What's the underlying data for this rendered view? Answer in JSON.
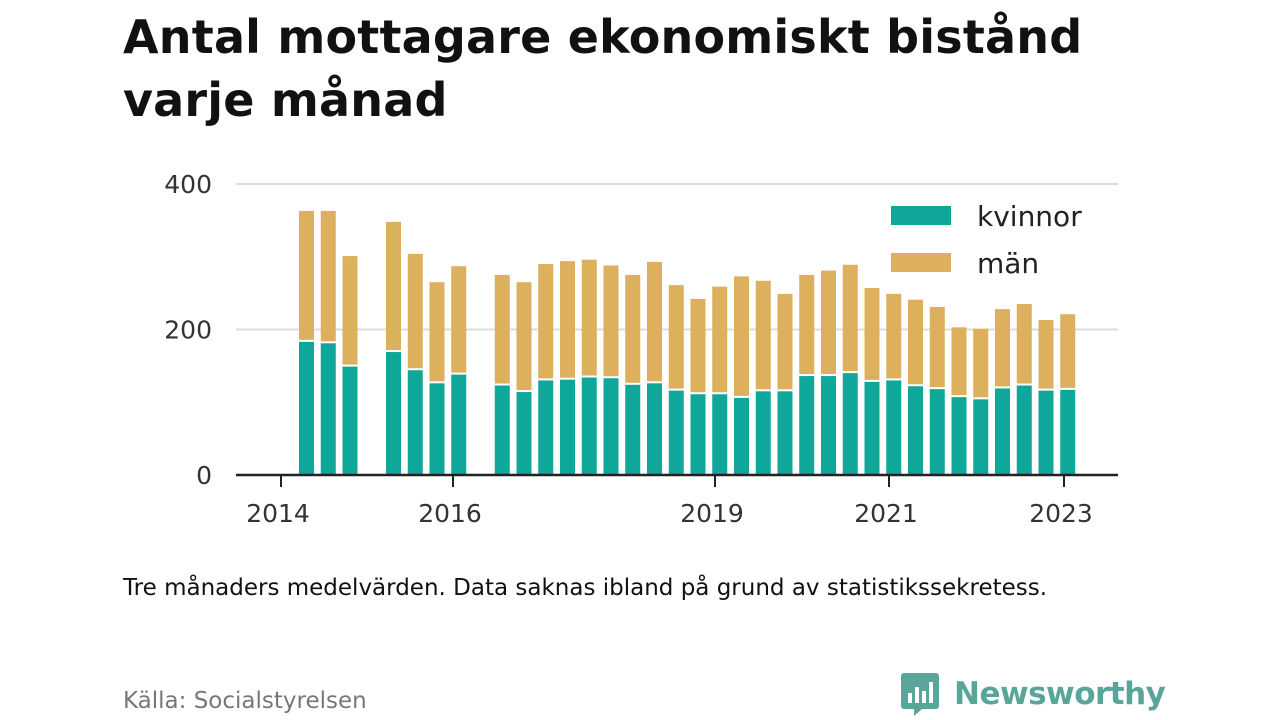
{
  "title": "Antal mottagare ekonomiskt bistånd varje månad",
  "note": "Tre månaders medelvärden. Data saknas ibland på grund av statistikssekretess.",
  "source": "Källa: Socialstyrelsen",
  "brand": {
    "name": "Newsworthy",
    "icon": "newsworthy-logo-icon",
    "color": "#5aa59a"
  },
  "chart_data": {
    "type": "bar",
    "stacked": true,
    "legend_position": "top-right",
    "grid": true,
    "ylim": [
      0,
      400
    ],
    "yticks": [
      "0",
      "200",
      "400"
    ],
    "xtick_labels": [
      "2014",
      "2016",
      "2019",
      "2021",
      "2023"
    ],
    "colors": {
      "kvinnor": "#0ea79a",
      "man": "#dcb05c",
      "grid": "#dddddd",
      "axis": "#222222"
    },
    "categories": [
      "2014-Q2",
      "2014-Q3",
      "2014-Q4",
      "2015-Q1",
      "2015-Q2",
      "2015-Q3",
      "2015-Q4",
      "2016-Q1",
      "2016-Q2",
      "2016-Q3",
      "2016-Q4",
      "2017-Q1",
      "2017-Q2",
      "2017-Q3",
      "2017-Q4",
      "2018-Q1",
      "2018-Q2",
      "2018-Q3",
      "2018-Q4",
      "2019-Q1",
      "2019-Q2",
      "2019-Q3",
      "2019-Q4",
      "2020-Q1",
      "2020-Q2",
      "2020-Q3",
      "2020-Q4",
      "2021-Q1",
      "2021-Q2",
      "2021-Q3",
      "2021-Q4",
      "2022-Q1",
      "2022-Q2",
      "2022-Q3",
      "2022-Q4",
      "2023-Q1",
      "2023-Q2",
      "2023-Q3"
    ],
    "series": [
      {
        "name": "kvinnor",
        "values": [
          183,
          181,
          149,
          null,
          169,
          144,
          126,
          138,
          null,
          123,
          114,
          130,
          131,
          134,
          133,
          124,
          126,
          116,
          111,
          111,
          106,
          115,
          115,
          136,
          136,
          140,
          128,
          130,
          122,
          118,
          107,
          104,
          119,
          123,
          116,
          117,
          null,
          null
        ]
      },
      {
        "name": "män",
        "values": [
          180,
          182,
          152,
          null,
          179,
          160,
          139,
          149,
          null,
          152,
          151,
          160,
          163,
          162,
          155,
          151,
          167,
          145,
          131,
          148,
          167,
          152,
          134,
          139,
          145,
          149,
          129,
          119,
          119,
          113,
          96,
          97,
          109,
          112,
          97,
          104,
          null,
          null
        ]
      }
    ]
  }
}
